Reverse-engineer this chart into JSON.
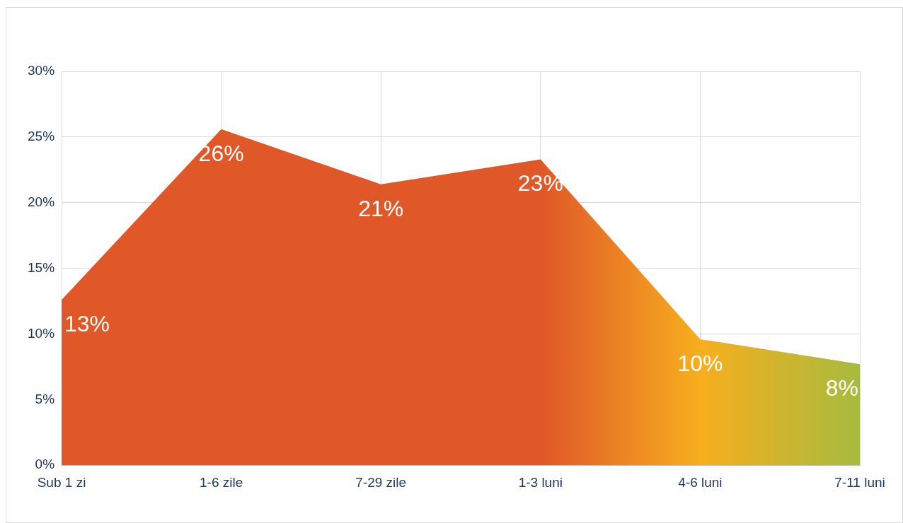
{
  "chart_data": {
    "type": "area",
    "categories": [
      "Sub 1 zi",
      "1-6 zile",
      "7-29 zile",
      "1-3 luni",
      "4-6 luni",
      "7-11 luni"
    ],
    "series": [
      {
        "colors": [
          "#e05728",
          "#e05728",
          "#e05728",
          "#e05728",
          "#f7ae1e",
          "#a6bb3e"
        ],
        "values": [
          12.6,
          25.6,
          21.4,
          23.3,
          9.6,
          7.7
        ],
        "value_labels": [
          "13%",
          "26%",
          "21%",
          "23%",
          "10%",
          "8%"
        ]
      }
    ],
    "ylim": [
      0,
      30
    ],
    "yticks": [
      {
        "value": 0,
        "label": "0%"
      },
      {
        "value": 5,
        "label": "5%"
      },
      {
        "value": 10,
        "label": "10%"
      },
      {
        "value": 15,
        "label": "15%"
      },
      {
        "value": 20,
        "label": "20%"
      },
      {
        "value": 25,
        "label": "25%"
      },
      {
        "value": 30,
        "label": "30%"
      }
    ],
    "grid": true,
    "legend": false
  }
}
